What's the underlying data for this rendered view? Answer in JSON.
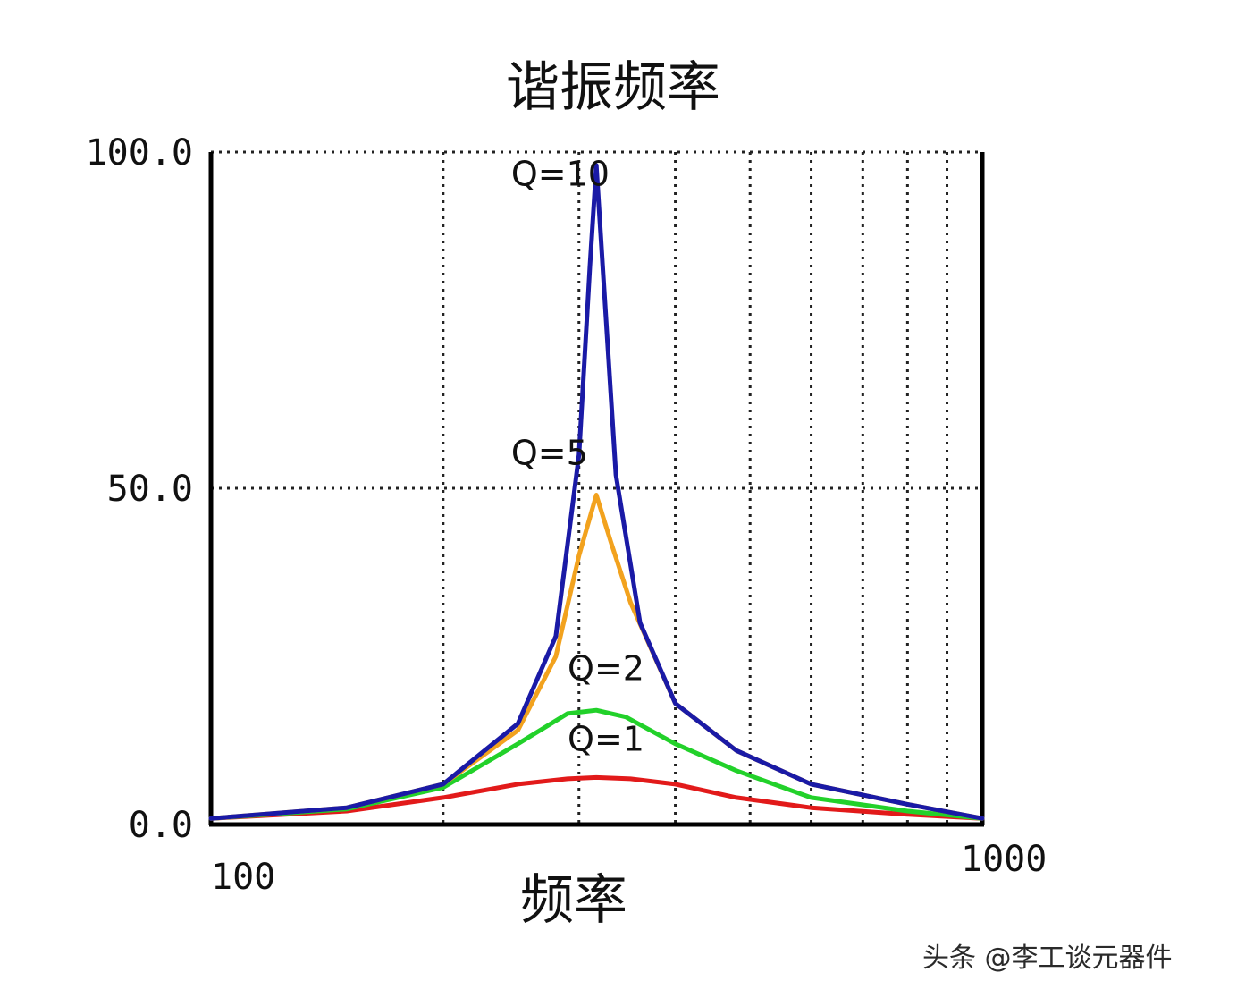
{
  "chart_data": {
    "type": "line",
    "title": "谐振频率",
    "xlabel": "频率",
    "ylabel": "",
    "xscale": "log",
    "xlim": [
      100,
      1000
    ],
    "ylim": [
      0,
      100
    ],
    "grid": "dotted",
    "x_tick_labels": [
      "100",
      "1000"
    ],
    "y_tick_labels": [
      "0.0",
      "50.0",
      "100.0"
    ],
    "y_ticks": [
      0,
      50,
      100
    ],
    "resonance_frequency": 316,
    "series": [
      {
        "name": "Q=10",
        "color": "#1a1aa6",
        "q": 10,
        "points": [
          [
            100,
            0.9
          ],
          [
            150,
            2.5
          ],
          [
            200,
            6
          ],
          [
            250,
            15
          ],
          [
            280,
            28
          ],
          [
            300,
            55
          ],
          [
            310,
            83
          ],
          [
            316,
            98
          ],
          [
            322,
            83
          ],
          [
            335,
            52
          ],
          [
            360,
            30
          ],
          [
            400,
            18
          ],
          [
            480,
            11
          ],
          [
            600,
            6
          ],
          [
            800,
            3
          ],
          [
            1000,
            0.9
          ]
        ]
      },
      {
        "name": "Q=5",
        "color": "#f2a21e",
        "q": 5,
        "points": [
          [
            100,
            0.9
          ],
          [
            150,
            2.5
          ],
          [
            200,
            6
          ],
          [
            250,
            14
          ],
          [
            280,
            25
          ],
          [
            300,
            40
          ],
          [
            316,
            49
          ],
          [
            330,
            42
          ],
          [
            350,
            33
          ],
          [
            400,
            18
          ],
          [
            480,
            11
          ],
          [
            600,
            6
          ],
          [
            800,
            3
          ],
          [
            1000,
            0.9
          ]
        ]
      },
      {
        "name": "Q=2",
        "color": "#22d12a",
        "q": 2,
        "points": [
          [
            100,
            0.9
          ],
          [
            150,
            2.3
          ],
          [
            200,
            5.5
          ],
          [
            250,
            12
          ],
          [
            290,
            16.5
          ],
          [
            316,
            17
          ],
          [
            345,
            16
          ],
          [
            400,
            12
          ],
          [
            480,
            8
          ],
          [
            600,
            4
          ],
          [
            800,
            2
          ],
          [
            1000,
            0.9
          ]
        ]
      },
      {
        "name": "Q=1",
        "color": "#e21a1a",
        "q": 1,
        "points": [
          [
            100,
            0.9
          ],
          [
            150,
            2
          ],
          [
            200,
            4
          ],
          [
            250,
            6
          ],
          [
            290,
            6.8
          ],
          [
            316,
            7
          ],
          [
            350,
            6.8
          ],
          [
            400,
            6
          ],
          [
            480,
            4
          ],
          [
            600,
            2.5
          ],
          [
            800,
            1.5
          ],
          [
            1000,
            0.9
          ]
        ]
      }
    ],
    "annotations": [
      {
        "text": "Q=10",
        "x": 245,
        "y": 95
      },
      {
        "text": "Q=5",
        "x": 245,
        "y": 53.5
      },
      {
        "text": "Q=2",
        "x": 290,
        "y": 21.5
      },
      {
        "text": "Q=1",
        "x": 290,
        "y": 11
      }
    ]
  },
  "watermark": "头条 @李工谈元器件"
}
